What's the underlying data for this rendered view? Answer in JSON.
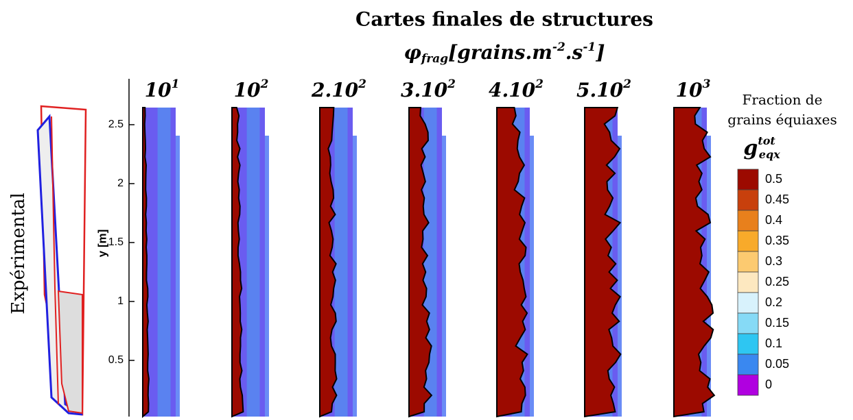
{
  "title": "Cartes finales de structures",
  "subtitle": {
    "symbol": "φ",
    "sub": "frag",
    "unit": "[grains.m",
    "exp1": "-2",
    "unit2": ".s",
    "exp2": "-1",
    "close": "]"
  },
  "panels": [
    {
      "base": "10",
      "exp": "1"
    },
    {
      "base": "10",
      "exp": "2"
    },
    {
      "base": "2.10",
      "exp": "2"
    },
    {
      "base": "3.10",
      "exp": "2"
    },
    {
      "base": "4.10",
      "exp": "2"
    },
    {
      "base": "5.10",
      "exp": "2"
    },
    {
      "base": "10",
      "exp": "3"
    }
  ],
  "side_label": "Expérimental",
  "y_axis": {
    "label": "y [m]",
    "ticks": [
      0.5,
      1,
      1.5,
      2,
      2.5
    ]
  },
  "legend": {
    "title": [
      "Fraction de",
      "grains équiaxes"
    ],
    "symbol": {
      "base": "g",
      "sub": "eqx",
      "sup": "tot"
    },
    "entries": [
      {
        "label": 0.5,
        "color": "#9c0a00"
      },
      {
        "label": 0.45,
        "color": "#c8400c"
      },
      {
        "label": 0.4,
        "color": "#e8801c"
      },
      {
        "label": 0.35,
        "color": "#f8aa2a"
      },
      {
        "label": 0.3,
        "color": "#fcca70"
      },
      {
        "label": 0.25,
        "color": "#fde8c0"
      },
      {
        "label": 0.2,
        "color": "#d8f2fc"
      },
      {
        "label": 0.15,
        "color": "#86daf6"
      },
      {
        "label": 0.1,
        "color": "#2ec6f2"
      },
      {
        "label": 0.05,
        "color": "#3a88f0"
      },
      {
        "label": 0,
        "color": "#b000e0"
      }
    ]
  }
}
